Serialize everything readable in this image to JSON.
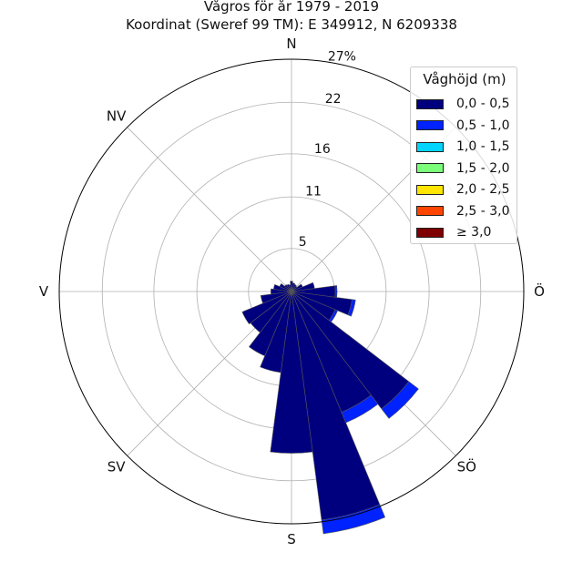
{
  "chart_data": {
    "type": "polar-bar",
    "title": "Vågros för år 1979 - 2019",
    "subtitle": "Koordinat (Sweref 99 TM): E 349912, N 6209338",
    "directions": [
      "N",
      "Ö",
      "S",
      "V",
      "NV",
      "SV",
      "SÖ"
    ],
    "r_ticks": [
      "5",
      "11",
      "16",
      "22",
      "27%"
    ],
    "rlim": [
      0,
      27
    ],
    "grid": true,
    "legend": {
      "title": "Våghöjd (m)",
      "placement": "top-right",
      "items": [
        {
          "label": "0,0 - 0,5",
          "color": "#00007F"
        },
        {
          "label": "0,5 - 1,0",
          "color": "#0022FF"
        },
        {
          "label": "1,0 - 1,5",
          "color": "#00D4FF"
        },
        {
          "label": "1,5 - 2,0",
          "color": "#7BFF7B"
        },
        {
          "label": "2,0 - 2,5",
          "color": "#FFE500"
        },
        {
          "label": "2,5 - 3,0",
          "color": "#FF4500"
        },
        {
          "label": "≥ 3,0",
          "color": "#7F0000"
        }
      ]
    },
    "sectors": [
      {
        "direction_deg": 0,
        "values": [
          1.2,
          0
        ]
      },
      {
        "direction_deg": 15,
        "values": [
          1.0,
          0
        ]
      },
      {
        "direction_deg": 30,
        "values": [
          0.9,
          0
        ]
      },
      {
        "direction_deg": 45,
        "values": [
          0.8,
          0
        ]
      },
      {
        "direction_deg": 60,
        "values": [
          1.4,
          0
        ]
      },
      {
        "direction_deg": 75,
        "values": [
          2.7,
          0
        ]
      },
      {
        "direction_deg": 90,
        "values": [
          5.1,
          0.2
        ]
      },
      {
        "direction_deg": 105,
        "values": [
          7.1,
          0.4
        ]
      },
      {
        "direction_deg": 120,
        "values": [
          5.5,
          0.3
        ]
      },
      {
        "direction_deg": 135,
        "values": [
          17.2,
          1.4
        ]
      },
      {
        "direction_deg": 150,
        "values": [
          15.2,
          1.3
        ]
      },
      {
        "direction_deg": 165,
        "values": [
          26.8,
          1.6
        ]
      },
      {
        "direction_deg": 180,
        "values": [
          18.8,
          0
        ]
      },
      {
        "direction_deg": 195,
        "values": [
          9.5,
          0
        ]
      },
      {
        "direction_deg": 210,
        "values": [
          8.1,
          0
        ]
      },
      {
        "direction_deg": 225,
        "values": [
          6.0,
          0
        ]
      },
      {
        "direction_deg": 240,
        "values": [
          6.2,
          0
        ]
      },
      {
        "direction_deg": 255,
        "values": [
          3.6,
          0
        ]
      },
      {
        "direction_deg": 270,
        "values": [
          2.4,
          0
        ]
      },
      {
        "direction_deg": 285,
        "values": [
          2.1,
          0
        ]
      },
      {
        "direction_deg": 300,
        "values": [
          1.5,
          0
        ]
      },
      {
        "direction_deg": 315,
        "values": [
          1.0,
          0
        ]
      },
      {
        "direction_deg": 330,
        "values": [
          0.9,
          0
        ]
      },
      {
        "direction_deg": 345,
        "values": [
          0.8,
          0
        ]
      }
    ]
  }
}
